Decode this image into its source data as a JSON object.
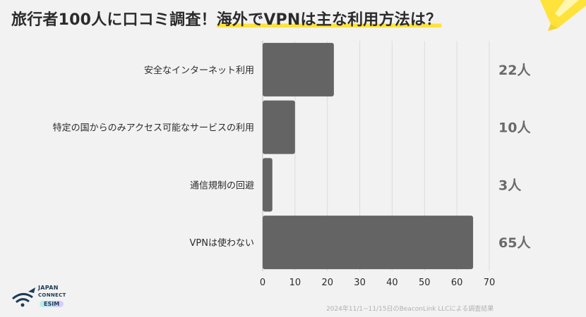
{
  "title": {
    "part1": "旅行者100人に口コミ調査！",
    "part2": "海外でVPNは主な利用方法は？"
  },
  "chart_data": {
    "type": "bar",
    "orientation": "horizontal",
    "categories": [
      "安全なインターネット利用",
      "特定の国からのみアクセス可能なサービスの利用",
      "通信規制の回避",
      "VPNは使わない"
    ],
    "values": [
      22,
      10,
      3,
      65
    ],
    "value_labels": [
      "22人",
      "10人",
      "3人",
      "65人"
    ],
    "xlim": [
      0,
      70
    ],
    "xticks": [
      0,
      10,
      20,
      30,
      40,
      50,
      60,
      70
    ],
    "grid": true,
    "bar_color": "#646464"
  },
  "logo": {
    "line1": "JAPAN",
    "line2": "CONNECT",
    "line3": "ESIM"
  },
  "source": "2024年11/1~11/15日のBeaconLink LLCによる調査結果"
}
